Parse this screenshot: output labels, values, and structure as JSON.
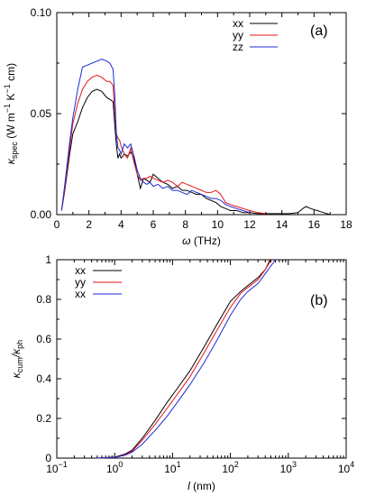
{
  "colors": {
    "xx": "#000000",
    "yy": "#e3161b",
    "zz": "#1c2bd6"
  },
  "chart_data": [
    {
      "type": "line",
      "panel_label": "(a)",
      "xlabel_sym": "ω",
      "xlabel_unit": " (THz)",
      "ylabel_sym": "κ",
      "ylabel_sub": "spec",
      "ylabel_unit": " (W m",
      "ylabel_exp1": "−1",
      "ylabel_mid": " K",
      "ylabel_exp2": "−1",
      "ylabel_tail": " cm)",
      "xlim": [
        0,
        18
      ],
      "ylim": [
        0,
        0.1
      ],
      "xticks": [
        "0",
        "2",
        "4",
        "6",
        "8",
        "10",
        "12",
        "14",
        "16",
        "18"
      ],
      "yticks": [
        "0.00",
        "0.05",
        "0.10"
      ],
      "legend_position": "top-right",
      "series": [
        {
          "name": "xx",
          "x": [
            0.3,
            0.5,
            0.8,
            1.0,
            1.3,
            1.6,
            1.9,
            2.2,
            2.5,
            2.8,
            3.1,
            3.3,
            3.5,
            3.6,
            3.7,
            3.8,
            3.9,
            4.0,
            4.2,
            4.4,
            4.6,
            4.8,
            5.0,
            5.2,
            5.4,
            5.6,
            5.8,
            6.0,
            6.3,
            6.6,
            6.9,
            7.2,
            7.5,
            7.8,
            8.1,
            8.4,
            8.7,
            9.0,
            9.3,
            9.6,
            9.9,
            10.2,
            10.5,
            10.8,
            11.2,
            11.6,
            12.0,
            12.5,
            13.0,
            13.5,
            14.0,
            14.5,
            15.0,
            15.3,
            15.5,
            15.8,
            16.2,
            16.6,
            17.0
          ],
          "y": [
            0.002,
            0.012,
            0.03,
            0.04,
            0.046,
            0.053,
            0.058,
            0.061,
            0.062,
            0.061,
            0.058,
            0.057,
            0.056,
            0.045,
            0.035,
            0.028,
            0.03,
            0.028,
            0.03,
            0.029,
            0.031,
            0.028,
            0.02,
            0.013,
            0.018,
            0.017,
            0.016,
            0.02,
            0.018,
            0.016,
            0.015,
            0.013,
            0.014,
            0.012,
            0.012,
            0.011,
            0.01,
            0.01,
            0.008,
            0.007,
            0.006,
            0.004,
            0.003,
            0.002,
            0.002,
            0.001,
            0.001,
            0.0005,
            0.0005,
            0.0005,
            0.0005,
            0.0005,
            0.001,
            0.003,
            0.004,
            0.003,
            0.002,
            0.001,
            0.0
          ]
        },
        {
          "name": "yy",
          "x": [
            0.3,
            0.5,
            0.8,
            1.0,
            1.3,
            1.6,
            1.9,
            2.2,
            2.5,
            2.8,
            3.1,
            3.3,
            3.5,
            3.6,
            3.7,
            3.8,
            3.9,
            4.0,
            4.2,
            4.4,
            4.6,
            4.8,
            5.0,
            5.2,
            5.4,
            5.6,
            5.8,
            6.0,
            6.3,
            6.6,
            6.9,
            7.2,
            7.5,
            7.8,
            8.1,
            8.4,
            8.7,
            9.0,
            9.3,
            9.6,
            9.9,
            10.2,
            10.5,
            10.8,
            11.2,
            11.6,
            12.0,
            12.5,
            13.0
          ],
          "y": [
            0.002,
            0.013,
            0.033,
            0.045,
            0.055,
            0.062,
            0.066,
            0.068,
            0.069,
            0.068,
            0.066,
            0.066,
            0.064,
            0.052,
            0.04,
            0.038,
            0.037,
            0.034,
            0.03,
            0.028,
            0.033,
            0.026,
            0.02,
            0.017,
            0.018,
            0.018,
            0.019,
            0.018,
            0.017,
            0.016,
            0.017,
            0.016,
            0.014,
            0.016,
            0.015,
            0.014,
            0.013,
            0.012,
            0.011,
            0.011,
            0.012,
            0.01,
            0.006,
            0.005,
            0.004,
            0.003,
            0.002,
            0.001,
            0.0005
          ]
        },
        {
          "name": "zz",
          "x": [
            0.3,
            0.5,
            0.8,
            1.0,
            1.3,
            1.6,
            1.9,
            2.2,
            2.5,
            2.8,
            3.1,
            3.3,
            3.5,
            3.6,
            3.7,
            3.8,
            3.9,
            4.0,
            4.2,
            4.4,
            4.6,
            4.8,
            5.0,
            5.2,
            5.4,
            5.6,
            5.8,
            6.0,
            6.3,
            6.6,
            6.9,
            7.2,
            7.5,
            7.8,
            8.1,
            8.4,
            8.7,
            9.0,
            9.3,
            9.6,
            9.9,
            10.2,
            10.5,
            10.8,
            11.2,
            11.6,
            12.0
          ],
          "y": [
            0.002,
            0.015,
            0.036,
            0.048,
            0.062,
            0.073,
            0.074,
            0.075,
            0.076,
            0.077,
            0.076,
            0.075,
            0.072,
            0.06,
            0.041,
            0.033,
            0.032,
            0.03,
            0.035,
            0.033,
            0.035,
            0.029,
            0.022,
            0.018,
            0.016,
            0.015,
            0.016,
            0.014,
            0.015,
            0.013,
            0.014,
            0.012,
            0.012,
            0.011,
            0.01,
            0.012,
            0.011,
            0.01,
            0.009,
            0.008,
            0.008,
            0.007,
            0.005,
            0.004,
            0.003,
            0.002,
            0.001
          ]
        }
      ]
    },
    {
      "type": "line",
      "panel_label": "(b)",
      "xscale": "log",
      "xlabel_sym": "l",
      "xlabel_unit": " (nm)",
      "ylabel_sym": "κ",
      "ylabel_sub": "cum",
      "ylabel_sep": "/κ",
      "ylabel_sub2": "ph",
      "xlim": [
        0.1,
        10000
      ],
      "ylim": [
        0,
        1
      ],
      "xtick_base": "10",
      "xtick_exps": [
        "−1",
        "0",
        "1",
        "2",
        "3",
        "4"
      ],
      "yticks": [
        "0",
        "0.2",
        "0.4",
        "0.6",
        "0.8",
        "1"
      ],
      "legend_position": "top-left",
      "series": [
        {
          "name": "xx",
          "color_key": "xx",
          "x": [
            0.5,
            1.0,
            1.5,
            2.0,
            3.0,
            5.0,
            8.0,
            12.0,
            20.0,
            35.0,
            60.0,
            100.0,
            150.0,
            200.0,
            300.0,
            400.0,
            500.0
          ],
          "y": [
            0.0,
            0.005,
            0.02,
            0.04,
            0.1,
            0.19,
            0.28,
            0.35,
            0.44,
            0.56,
            0.68,
            0.79,
            0.84,
            0.87,
            0.91,
            0.95,
            1.0
          ]
        },
        {
          "name": "yy",
          "color_key": "yy",
          "x": [
            0.5,
            1.0,
            1.5,
            2.0,
            3.0,
            5.0,
            8.0,
            12.0,
            20.0,
            35.0,
            60.0,
            100.0,
            150.0,
            200.0,
            300.0,
            400.0,
            480.0
          ],
          "y": [
            0.0,
            0.004,
            0.017,
            0.035,
            0.09,
            0.17,
            0.25,
            0.32,
            0.41,
            0.53,
            0.65,
            0.76,
            0.83,
            0.86,
            0.9,
            0.95,
            1.0
          ]
        },
        {
          "name": "xx",
          "color_key": "zz",
          "x": [
            0.5,
            1.0,
            1.5,
            2.0,
            3.0,
            5.0,
            8.0,
            12.0,
            20.0,
            35.0,
            60.0,
            100.0,
            150.0,
            200.0,
            300.0,
            400.0,
            600.0
          ],
          "y": [
            0.0,
            0.003,
            0.014,
            0.03,
            0.07,
            0.14,
            0.21,
            0.28,
            0.37,
            0.48,
            0.6,
            0.72,
            0.8,
            0.84,
            0.88,
            0.93,
            1.0
          ]
        }
      ]
    }
  ]
}
